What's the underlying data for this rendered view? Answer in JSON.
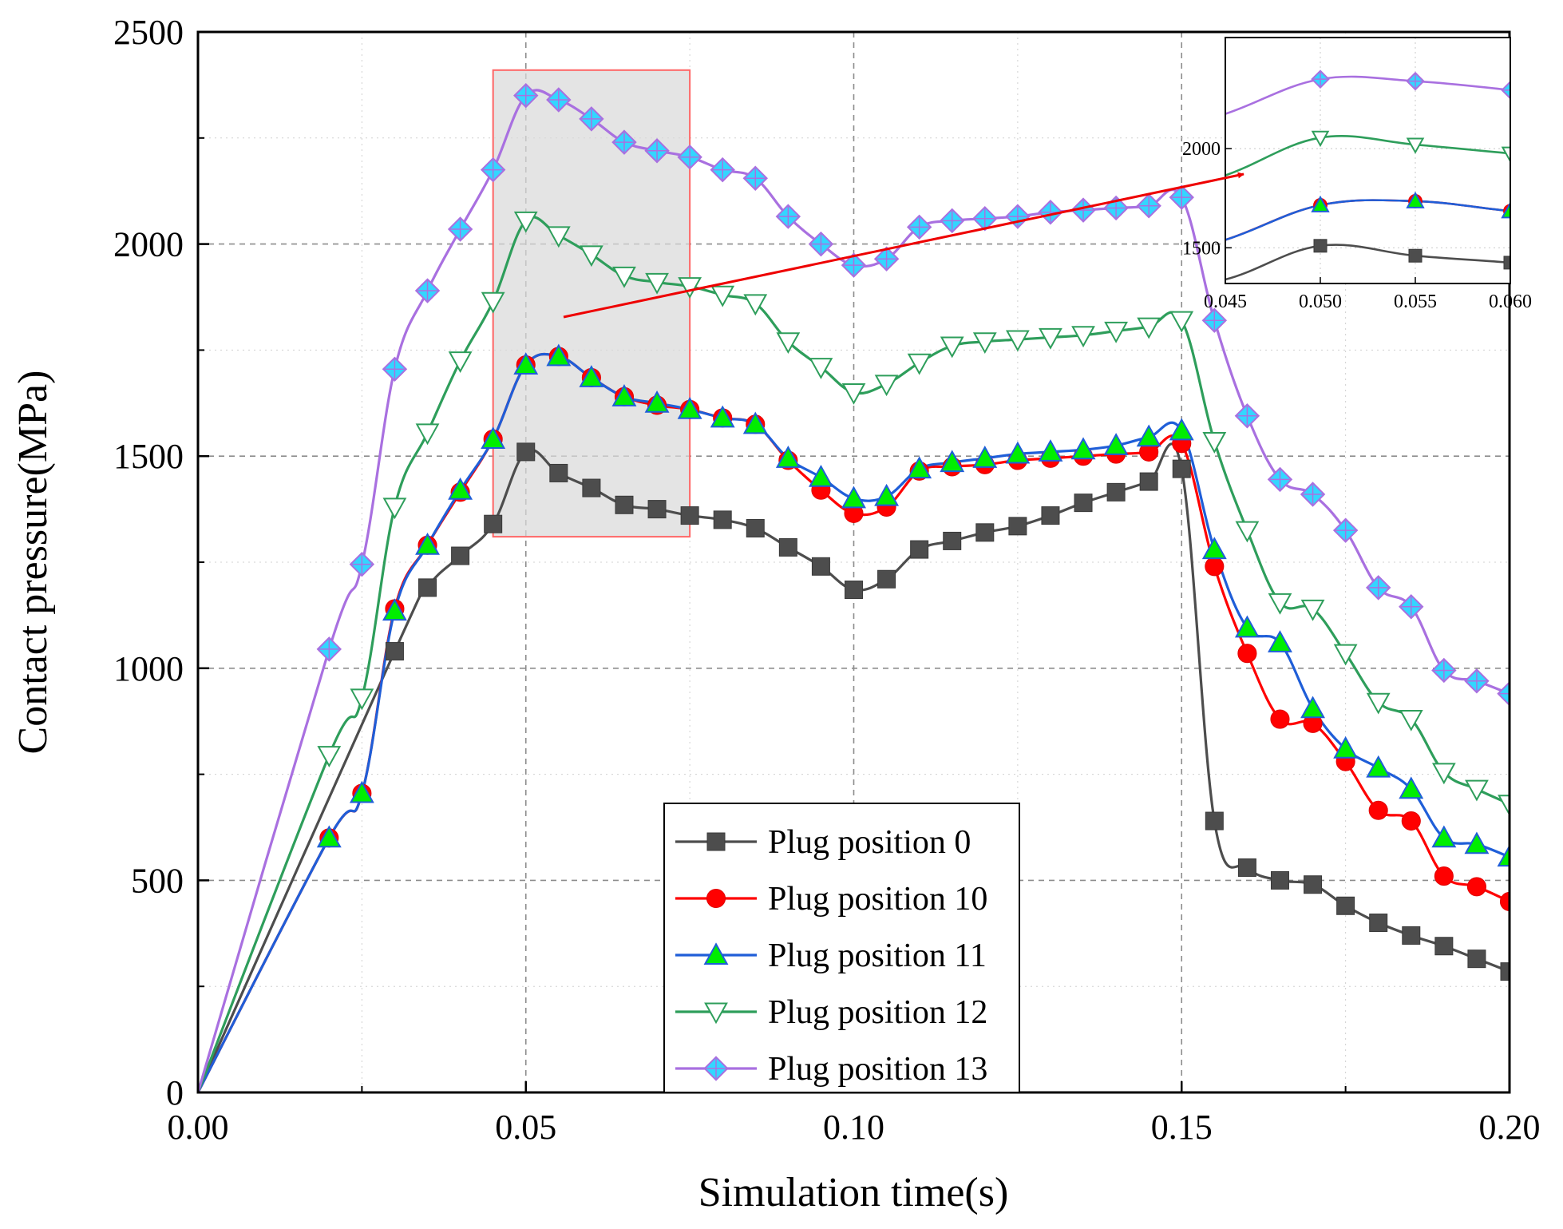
{
  "chart_data": {
    "type": "line",
    "xlabel": "Simulation time(s)",
    "ylabel": "Contact pressure(MPa)",
    "xlim": [
      0,
      0.2
    ],
    "ylim": [
      0,
      2500
    ],
    "x_ticks": [
      "0.00",
      "0.05",
      "0.10",
      "0.15",
      "0.20"
    ],
    "y_ticks": [
      "0",
      "500",
      "1000",
      "1500",
      "2000",
      "2500"
    ],
    "legend_position": "bottom-center",
    "series": [
      {
        "name": "Plug position 0",
        "color": "#4d4d4d",
        "marker": "square",
        "x": [
          0,
          0.03,
          0.035,
          0.04,
          0.045,
          0.05,
          0.055,
          0.06,
          0.065,
          0.07,
          0.075,
          0.08,
          0.085,
          0.09,
          0.095,
          0.1,
          0.105,
          0.11,
          0.115,
          0.12,
          0.125,
          0.13,
          0.135,
          0.14,
          0.145,
          0.15,
          0.155,
          0.16,
          0.165,
          0.17,
          0.175,
          0.18,
          0.185,
          0.19,
          0.195,
          0.2
        ],
        "values": [
          0,
          1040,
          1190,
          1265,
          1340,
          1510,
          1460,
          1425,
          1385,
          1375,
          1360,
          1350,
          1330,
          1285,
          1240,
          1185,
          1210,
          1280,
          1300,
          1320,
          1335,
          1360,
          1390,
          1415,
          1440,
          1470,
          640,
          530,
          500,
          490,
          440,
          400,
          370,
          345,
          315,
          285
        ]
      },
      {
        "name": "Plug position 10",
        "color": "#ff0000",
        "marker": "circle",
        "x": [
          0,
          0.02,
          0.025,
          0.03,
          0.035,
          0.04,
          0.045,
          0.05,
          0.055,
          0.06,
          0.065,
          0.07,
          0.075,
          0.08,
          0.085,
          0.09,
          0.095,
          0.1,
          0.105,
          0.11,
          0.115,
          0.12,
          0.125,
          0.13,
          0.135,
          0.14,
          0.145,
          0.15,
          0.155,
          0.16,
          0.165,
          0.17,
          0.175,
          0.18,
          0.185,
          0.19,
          0.195,
          0.2
        ],
        "values": [
          0,
          600,
          705,
          1140,
          1290,
          1415,
          1540,
          1715,
          1735,
          1685,
          1640,
          1620,
          1610,
          1590,
          1575,
          1490,
          1420,
          1365,
          1380,
          1465,
          1475,
          1480,
          1490,
          1495,
          1500,
          1505,
          1510,
          1530,
          1240,
          1035,
          880,
          870,
          780,
          665,
          640,
          510,
          485,
          450
        ]
      },
      {
        "name": "Plug position 11",
        "color": "#1f5ed8",
        "marker": "triangle-up",
        "x": [
          0,
          0.02,
          0.025,
          0.03,
          0.035,
          0.04,
          0.045,
          0.05,
          0.055,
          0.06,
          0.065,
          0.07,
          0.075,
          0.08,
          0.085,
          0.09,
          0.095,
          0.1,
          0.105,
          0.11,
          0.115,
          0.12,
          0.125,
          0.13,
          0.135,
          0.14,
          0.145,
          0.15,
          0.155,
          0.16,
          0.165,
          0.17,
          0.175,
          0.18,
          0.185,
          0.19,
          0.195,
          0.2
        ],
        "values": [
          0,
          600,
          705,
          1135,
          1290,
          1420,
          1540,
          1715,
          1735,
          1685,
          1640,
          1625,
          1610,
          1590,
          1575,
          1495,
          1450,
          1400,
          1405,
          1470,
          1485,
          1495,
          1505,
          1510,
          1515,
          1525,
          1545,
          1560,
          1280,
          1095,
          1060,
          905,
          810,
          765,
          715,
          600,
          585,
          555
        ]
      },
      {
        "name": "Plug position 12",
        "color": "#2e9e5b",
        "marker": "triangle-down-open",
        "x": [
          0,
          0.02,
          0.025,
          0.03,
          0.035,
          0.04,
          0.045,
          0.05,
          0.055,
          0.06,
          0.065,
          0.07,
          0.075,
          0.08,
          0.085,
          0.09,
          0.095,
          0.1,
          0.105,
          0.11,
          0.115,
          0.12,
          0.125,
          0.13,
          0.135,
          0.14,
          0.145,
          0.15,
          0.155,
          0.16,
          0.165,
          0.17,
          0.175,
          0.18,
          0.185,
          0.19,
          0.195,
          0.2
        ],
        "values": [
          0,
          795,
          930,
          1380,
          1555,
          1725,
          1865,
          2055,
          2020,
          1975,
          1925,
          1910,
          1900,
          1880,
          1860,
          1770,
          1710,
          1650,
          1670,
          1720,
          1760,
          1770,
          1775,
          1780,
          1785,
          1795,
          1805,
          1820,
          1535,
          1325,
          1155,
          1140,
          1035,
          920,
          880,
          755,
          715,
          680
        ]
      },
      {
        "name": "Plug position 13",
        "color": "#a970e0",
        "marker": "diamond-cross",
        "x": [
          0,
          0.02,
          0.025,
          0.03,
          0.035,
          0.04,
          0.045,
          0.05,
          0.055,
          0.06,
          0.065,
          0.07,
          0.075,
          0.08,
          0.085,
          0.09,
          0.095,
          0.1,
          0.105,
          0.11,
          0.115,
          0.12,
          0.125,
          0.13,
          0.135,
          0.14,
          0.145,
          0.15,
          0.155,
          0.16,
          0.165,
          0.17,
          0.175,
          0.18,
          0.185,
          0.19,
          0.195,
          0.2
        ],
        "values": [
          0,
          1045,
          1245,
          1705,
          1890,
          2035,
          2175,
          2350,
          2340,
          2295,
          2240,
          2220,
          2205,
          2175,
          2155,
          2065,
          2000,
          1950,
          1965,
          2040,
          2055,
          2060,
          2065,
          2075,
          2080,
          2085,
          2090,
          2110,
          1820,
          1595,
          1445,
          1410,
          1325,
          1190,
          1145,
          995,
          970,
          940
        ]
      }
    ],
    "highlight_region": {
      "x": [
        0.045,
        0.075
      ],
      "y": [
        1310,
        2410
      ]
    },
    "inset": {
      "xlim": [
        0.045,
        0.06
      ],
      "ylim": [
        1320,
        2560
      ],
      "x_ticks": [
        "0.045",
        "0.050",
        "0.055",
        "0.060"
      ],
      "y_ticks": [
        "1500",
        "2000"
      ]
    }
  }
}
